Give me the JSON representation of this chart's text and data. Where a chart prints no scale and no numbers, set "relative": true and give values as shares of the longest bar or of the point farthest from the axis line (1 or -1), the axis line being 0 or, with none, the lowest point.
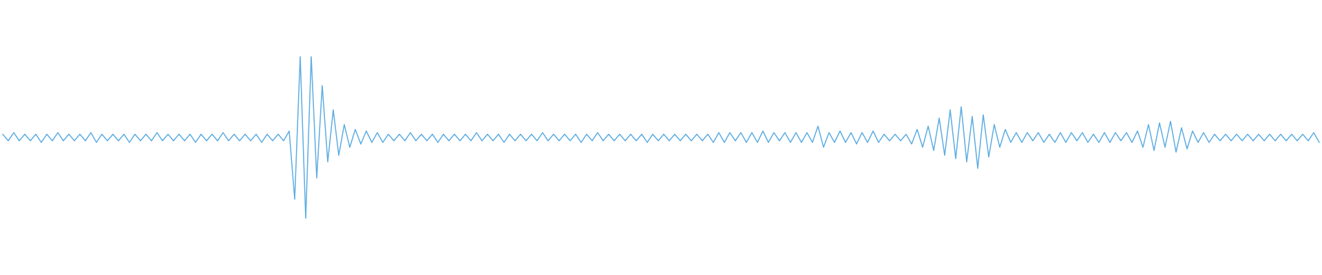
{
  "chart_data": {
    "type": "line",
    "relative": true,
    "categories": [
      null,
      null,
      null,
      null,
      null,
      null,
      null,
      null,
      null,
      null,
      null,
      null,
      null,
      null,
      null,
      null,
      null,
      null,
      null,
      null,
      null,
      null,
      null,
      null,
      null,
      null,
      null,
      null,
      null,
      null,
      null,
      null,
      null,
      null,
      null,
      null,
      null,
      null,
      null,
      null,
      null,
      null,
      null,
      null,
      null,
      null,
      null,
      null,
      null,
      null,
      null,
      null,
      null,
      null,
      null,
      null,
      null,
      null,
      null,
      null,
      null,
      null,
      null,
      null,
      null,
      null,
      null,
      null,
      null,
      null,
      null,
      null,
      null,
      null,
      null,
      null,
      null,
      null,
      null,
      null,
      null,
      null,
      null,
      null,
      null,
      null,
      null,
      null,
      null,
      null,
      null,
      null,
      null,
      null,
      null,
      null,
      null,
      null,
      null,
      null,
      null,
      null,
      null,
      null,
      null,
      null,
      null,
      null,
      null,
      null,
      null,
      null,
      null,
      null,
      null,
      null,
      null,
      null,
      null,
      null,
      null,
      null,
      null,
      null,
      null,
      null,
      null,
      null,
      null,
      null,
      null,
      null,
      null,
      null,
      null,
      null,
      null,
      null,
      null,
      null,
      null,
      null,
      null,
      null,
      null,
      null,
      null,
      null,
      null,
      null,
      null,
      null,
      null,
      null,
      null,
      null,
      null,
      null,
      null,
      null,
      null,
      null,
      null,
      null,
      null,
      null,
      null,
      null,
      null,
      null,
      null,
      null,
      null,
      null,
      null,
      null,
      null,
      null,
      null,
      null,
      null,
      null,
      null,
      null,
      null,
      null,
      null,
      null,
      null,
      null,
      null,
      null,
      null,
      null,
      null,
      null,
      null,
      null,
      null,
      null,
      null,
      null,
      null,
      null,
      null,
      null,
      null,
      null,
      null,
      null,
      null,
      null,
      null,
      null,
      null,
      null,
      null,
      null,
      null,
      null,
      null,
      null,
      null,
      null,
      null,
      null,
      null,
      null,
      null,
      null,
      null,
      null,
      null,
      null,
      null,
      null,
      null,
      null,
      null,
      null
    ],
    "series": [
      {
        "color": "#5dade2",
        "values": [
          0.52,
          0.48,
          0.53,
          0.48,
          0.52,
          0.48,
          0.52,
          0.47,
          0.52,
          0.48,
          0.53,
          0.48,
          0.52,
          0.48,
          0.52,
          0.48,
          0.53,
          0.47,
          0.52,
          0.48,
          0.52,
          0.48,
          0.52,
          0.47,
          0.52,
          0.48,
          0.52,
          0.48,
          0.53,
          0.48,
          0.52,
          0.48,
          0.52,
          0.48,
          0.52,
          0.47,
          0.52,
          0.48,
          0.52,
          0.48,
          0.53,
          0.48,
          0.52,
          0.48,
          0.52,
          0.48,
          0.52,
          0.47,
          0.52,
          0.48,
          0.52,
          0.48,
          0.54,
          0.12,
          1.0,
          0.0,
          1.0,
          0.25,
          0.82,
          0.35,
          0.67,
          0.39,
          0.58,
          0.44,
          0.55,
          0.46,
          0.54,
          0.47,
          0.53,
          0.47,
          0.52,
          0.48,
          0.52,
          0.48,
          0.53,
          0.48,
          0.52,
          0.48,
          0.52,
          0.47,
          0.52,
          0.48,
          0.52,
          0.48,
          0.52,
          0.48,
          0.53,
          0.48,
          0.52,
          0.48,
          0.52,
          0.47,
          0.52,
          0.48,
          0.52,
          0.48,
          0.52,
          0.48,
          0.53,
          0.48,
          0.52,
          0.48,
          0.52,
          0.48,
          0.52,
          0.47,
          0.52,
          0.48,
          0.53,
          0.48,
          0.52,
          0.48,
          0.52,
          0.48,
          0.52,
          0.48,
          0.52,
          0.47,
          0.52,
          0.48,
          0.52,
          0.48,
          0.52,
          0.48,
          0.52,
          0.48,
          0.52,
          0.48,
          0.52,
          0.47,
          0.53,
          0.47,
          0.53,
          0.48,
          0.53,
          0.47,
          0.53,
          0.47,
          0.54,
          0.47,
          0.53,
          0.48,
          0.53,
          0.47,
          0.53,
          0.47,
          0.53,
          0.47,
          0.57,
          0.44,
          0.53,
          0.47,
          0.54,
          0.47,
          0.53,
          0.46,
          0.53,
          0.47,
          0.54,
          0.47,
          0.52,
          0.48,
          0.52,
          0.48,
          0.52,
          0.46,
          0.55,
          0.44,
          0.57,
          0.42,
          0.62,
          0.39,
          0.67,
          0.37,
          0.69,
          0.35,
          0.63,
          0.31,
          0.64,
          0.38,
          0.58,
          0.44,
          0.55,
          0.47,
          0.53,
          0.47,
          0.53,
          0.48,
          0.53,
          0.47,
          0.52,
          0.47,
          0.53,
          0.47,
          0.53,
          0.48,
          0.53,
          0.47,
          0.52,
          0.47,
          0.53,
          0.47,
          0.53,
          0.48,
          0.53,
          0.47,
          0.54,
          0.44,
          0.58,
          0.42,
          0.59,
          0.44,
          0.6,
          0.41,
          0.56,
          0.43,
          0.54,
          0.47,
          0.53,
          0.47,
          0.52,
          0.48,
          0.52,
          0.48,
          0.52,
          0.48,
          0.52,
          0.48,
          0.52,
          0.48,
          0.52,
          0.48,
          0.52,
          0.48,
          0.52,
          0.48,
          0.52,
          0.48,
          0.53,
          0.47
        ]
      }
    ]
  }
}
